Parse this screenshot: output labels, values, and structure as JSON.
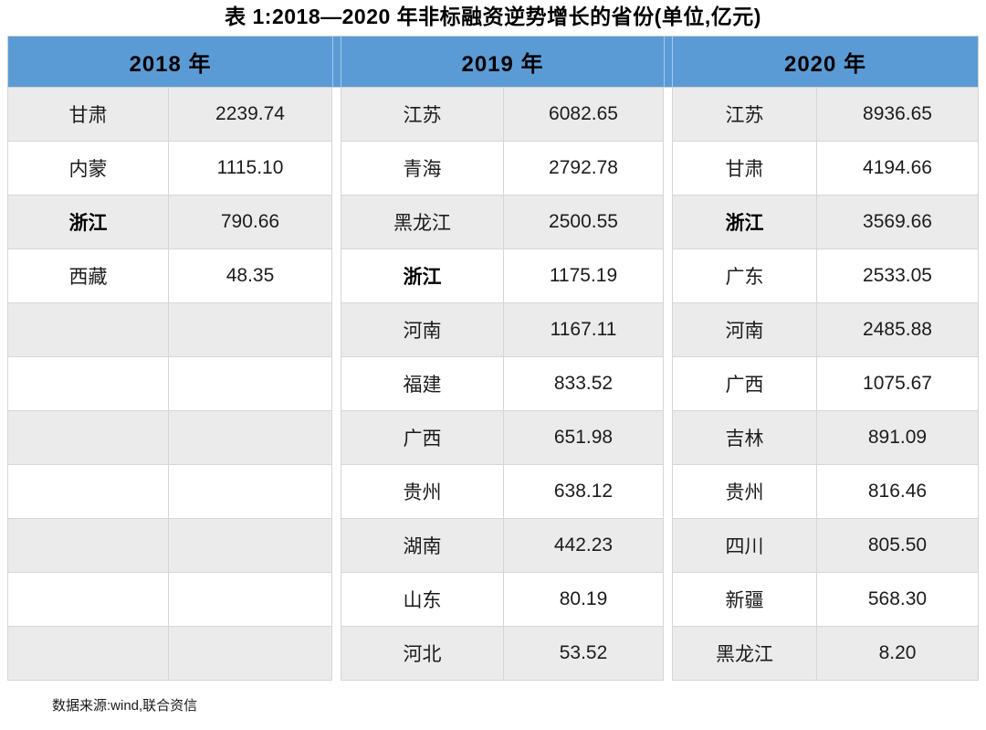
{
  "title": "表 1:2018—2020 年非标融资逆势增长的省份(单位,亿元)",
  "source_note": "数据来源:wind,联合资信",
  "colors": {
    "header_bg": "#5b9bd5",
    "row_stripe_bg": "#ebebeb",
    "row_bg": "#ffffff",
    "border": "#d6d6d6",
    "text": "#1c1c1c"
  },
  "table": {
    "unit": "亿元",
    "year_headers": [
      "2018 年",
      "2019 年",
      "2020 年"
    ],
    "groups": [
      {
        "year": "2018 年",
        "rows": [
          {
            "p": "甘肃",
            "v": "2239.74",
            "b": false
          },
          {
            "p": "内蒙",
            "v": "1115.10",
            "b": false
          },
          {
            "p": "浙江",
            "v": "790.66",
            "b": true
          },
          {
            "p": "西藏",
            "v": "48.35",
            "b": false
          },
          {
            "p": "",
            "v": "",
            "b": false
          },
          {
            "p": "",
            "v": "",
            "b": false
          },
          {
            "p": "",
            "v": "",
            "b": false
          },
          {
            "p": "",
            "v": "",
            "b": false
          },
          {
            "p": "",
            "v": "",
            "b": false
          },
          {
            "p": "",
            "v": "",
            "b": false
          },
          {
            "p": "",
            "v": "",
            "b": false
          }
        ]
      },
      {
        "year": "2019 年",
        "rows": [
          {
            "p": "江苏",
            "v": "6082.65",
            "b": false
          },
          {
            "p": "青海",
            "v": "2792.78",
            "b": false
          },
          {
            "p": "黑龙江",
            "v": "2500.55",
            "b": false
          },
          {
            "p": "浙江",
            "v": "1175.19",
            "b": true
          },
          {
            "p": "河南",
            "v": "1167.11",
            "b": false
          },
          {
            "p": "福建",
            "v": "833.52",
            "b": false
          },
          {
            "p": "广西",
            "v": "651.98",
            "b": false
          },
          {
            "p": "贵州",
            "v": "638.12",
            "b": false
          },
          {
            "p": "湖南",
            "v": "442.23",
            "b": false
          },
          {
            "p": "山东",
            "v": "80.19",
            "b": false
          },
          {
            "p": "河北",
            "v": "53.52",
            "b": false
          }
        ]
      },
      {
        "year": "2020 年",
        "rows": [
          {
            "p": "江苏",
            "v": "8936.65",
            "b": false
          },
          {
            "p": "甘肃",
            "v": "4194.66",
            "b": false
          },
          {
            "p": "浙江",
            "v": "3569.66",
            "b": true
          },
          {
            "p": "广东",
            "v": "2533.05",
            "b": false
          },
          {
            "p": "河南",
            "v": "2485.88",
            "b": false
          },
          {
            "p": "广西",
            "v": "1075.67",
            "b": false
          },
          {
            "p": "吉林",
            "v": "891.09",
            "b": false
          },
          {
            "p": "贵州",
            "v": "816.46",
            "b": false
          },
          {
            "p": "四川",
            "v": "805.50",
            "b": false
          },
          {
            "p": "新疆",
            "v": "568.30",
            "b": false
          },
          {
            "p": "黑龙江",
            "v": "8.20",
            "b": false
          }
        ]
      }
    ]
  }
}
